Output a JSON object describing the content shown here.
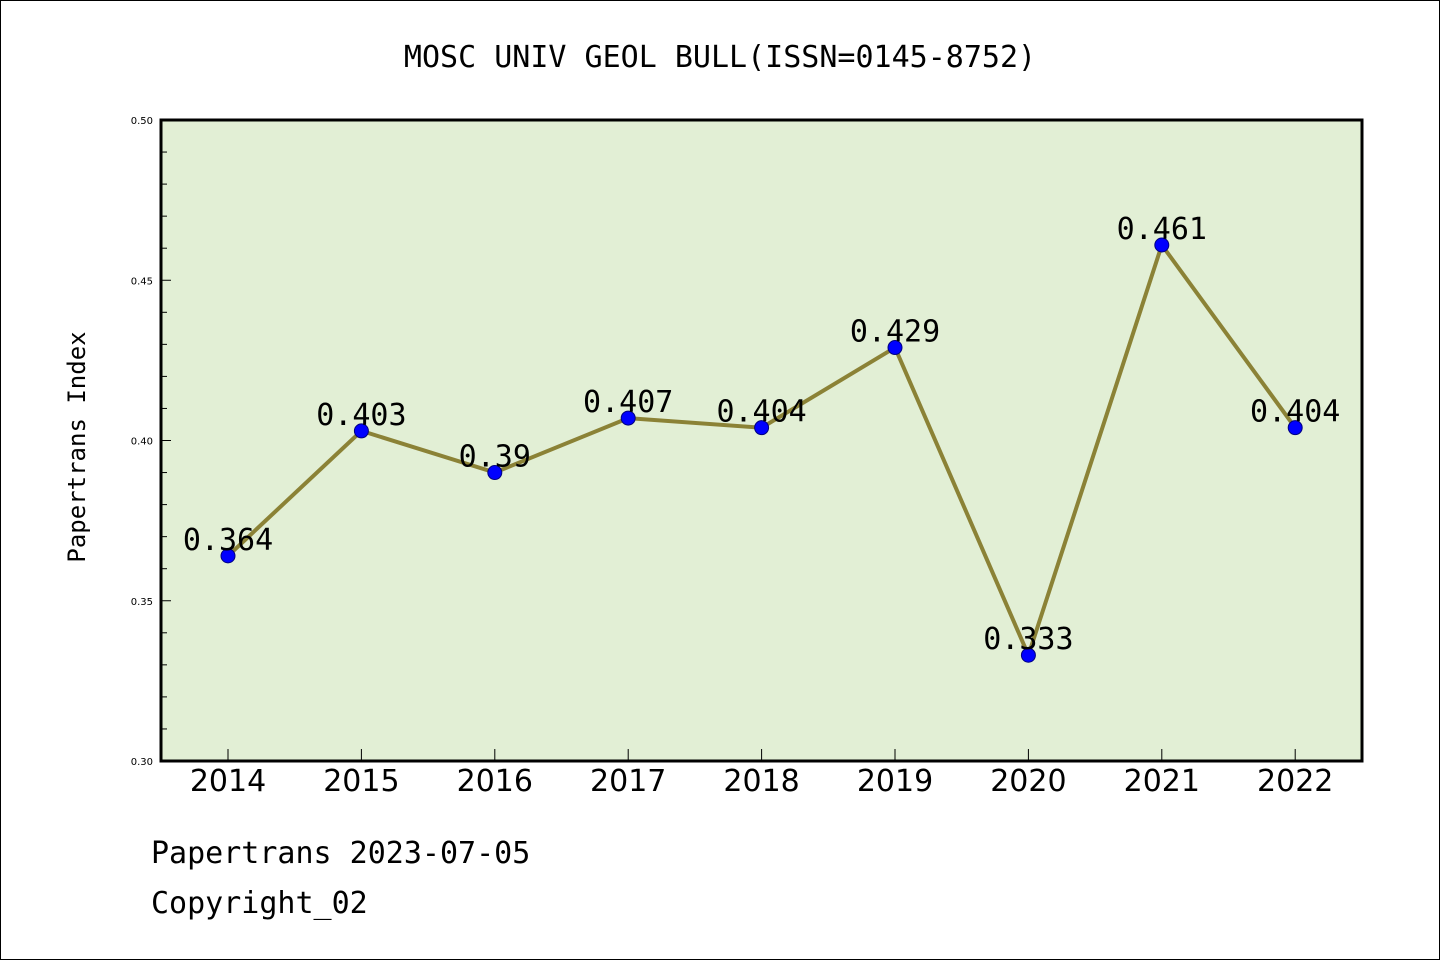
{
  "chart_data": {
    "type": "line",
    "title": "MOSC UNIV GEOL BULL(ISSN=0145-8752)",
    "xlabel": "",
    "ylabel": "Papertrans Index",
    "categories": [
      "2014",
      "2015",
      "2016",
      "2017",
      "2018",
      "2019",
      "2020",
      "2021",
      "2022"
    ],
    "series": [
      {
        "values": [
          0.364,
          0.403,
          0.39,
          0.407,
          0.404,
          0.429,
          0.333,
          0.461,
          0.404
        ],
        "labels": [
          "0.364",
          "0.403",
          "0.39",
          "0.407",
          "0.404",
          "0.429",
          "0.333",
          "0.461",
          "0.404"
        ]
      }
    ],
    "ylim": [
      0.3,
      0.5
    ],
    "yticks": [
      "0.30",
      "0.35",
      "0.40",
      "0.45",
      "0.50"
    ],
    "grid": false,
    "legend": "none"
  },
  "footer": {
    "line1": "Papertrans 2023-07-05",
    "line2": "Copyright_02"
  },
  "colors": {
    "plot_background": "#e2efd5",
    "line": "#8b8236",
    "marker": "#0000ff",
    "axes": "#000000"
  }
}
